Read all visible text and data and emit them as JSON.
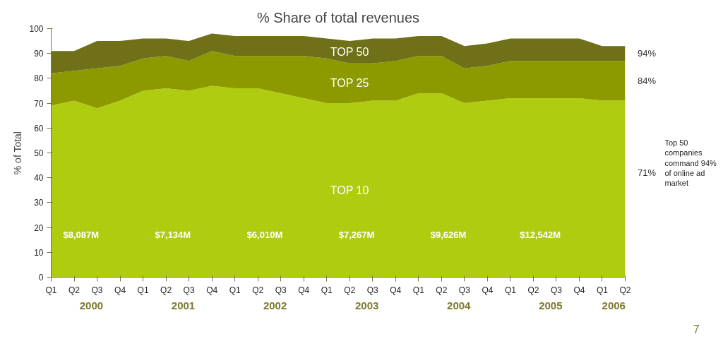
{
  "chart_data": {
    "type": "area",
    "stacked": true,
    "title": "% Share of total revenues",
    "ylabel": "% of Total",
    "categories": [
      "Q1",
      "Q2",
      "Q3",
      "Q4",
      "Q1",
      "Q2",
      "Q3",
      "Q4",
      "Q1",
      "Q2",
      "Q3",
      "Q4",
      "Q1",
      "Q2",
      "Q3",
      "Q4",
      "Q1",
      "Q2",
      "Q3",
      "Q4",
      "Q1",
      "Q2",
      "Q3",
      "Q4",
      "Q1",
      "Q2"
    ],
    "series": [
      {
        "name": "TOP 10",
        "color": "#b0cc10",
        "values": [
          69,
          71,
          68,
          71,
          75,
          76,
          75,
          77,
          76,
          76,
          74,
          72,
          70,
          70,
          71,
          71,
          74,
          74,
          70,
          71,
          72,
          72,
          72,
          72,
          71,
          71
        ]
      },
      {
        "name": "TOP 25",
        "color": "#8c9a00",
        "values": [
          13,
          12,
          16,
          14,
          13,
          13,
          12,
          14,
          13,
          13,
          15,
          17,
          18,
          16,
          15,
          16,
          15,
          15,
          14,
          14,
          15,
          15,
          15,
          15,
          16,
          16
        ]
      },
      {
        "name": "TOP 50",
        "color": "#6f7018",
        "values": [
          9,
          8,
          11,
          10,
          8,
          7,
          8,
          7,
          8,
          8,
          8,
          8,
          8,
          9,
          10,
          9,
          8,
          8,
          9,
          9,
          9,
          9,
          9,
          9,
          6,
          6
        ]
      }
    ],
    "ylim": [
      0,
      100
    ],
    "yticks": [
      0,
      10,
      20,
      30,
      40,
      50,
      60,
      70,
      80,
      90,
      100
    ],
    "grid": false,
    "annotations": [
      "$8,087M",
      "$7,134M",
      "$6,010M",
      "$7,267M",
      "$9,626M",
      "$12,542M",
      "2000",
      "2001",
      "2002",
      "2003",
      "2004",
      "2005",
      "2006",
      "94%",
      "84%",
      "71%",
      "Top 50 companies command 94% of online ad market",
      "7"
    ]
  }
}
